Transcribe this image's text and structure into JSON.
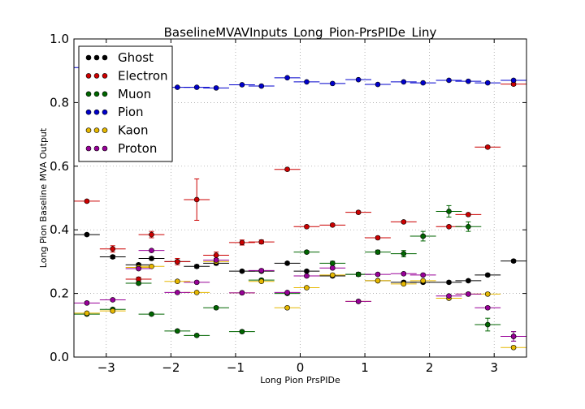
{
  "chart_data": {
    "type": "scatter",
    "title": "BaselineMVAVInputs_Long_Pion-PrsPIDe_Liny",
    "xlabel": "Long Pion PrsPIDe",
    "ylabel": "Long Pion Baseline MVA Output",
    "xlim": [
      -3.5,
      3.5
    ],
    "ylim": [
      0.0,
      1.0
    ],
    "xticks": [
      -3,
      -2,
      -1,
      0,
      1,
      2,
      3
    ],
    "xtick_labels": [
      "−3",
      "−2",
      "−1",
      "0",
      "1",
      "2",
      "3"
    ],
    "yticks": [
      0.0,
      0.2,
      0.4,
      0.6,
      0.8,
      1.0
    ],
    "ytick_labels": [
      "0.0",
      "0.2",
      "0.4",
      "0.6",
      "0.8",
      "1.0"
    ],
    "grid": true,
    "legend_position": "top-left",
    "bins": [
      -3.3,
      -2.9,
      -2.5,
      -2.3,
      -1.9,
      -1.6,
      -1.3,
      -0.9,
      -0.6,
      -0.2,
      0.1,
      0.5,
      0.9,
      1.2,
      1.6,
      1.9,
      2.3,
      2.6,
      2.9,
      3.3
    ],
    "x_half_width": 0.2,
    "series": [
      {
        "name": "Ghost",
        "color": "#000000",
        "y": [
          0.385,
          0.315,
          0.29,
          0.31,
          0.3,
          0.285,
          0.295,
          0.27,
          0.27,
          0.295,
          0.27,
          0.255,
          0.26,
          0.24,
          0.235,
          0.235,
          0.235,
          0.24,
          0.258,
          0.302
        ],
        "err": [
          0.004,
          0.005,
          0.005,
          0.005,
          0.005,
          0.005,
          0.005,
          0.004,
          0.004,
          0.004,
          0.004,
          0.004,
          0.004,
          0.004,
          0.004,
          0.004,
          0.004,
          0.004,
          0.004,
          0.004
        ]
      },
      {
        "name": "Electron",
        "color": "#cc0000",
        "y": [
          0.49,
          0.34,
          0.245,
          0.385,
          0.3,
          0.495,
          0.32,
          0.36,
          0.362,
          0.59,
          0.41,
          0.415,
          0.455,
          0.375,
          0.425,
          0.38,
          0.41,
          0.448,
          0.66,
          0.858
        ],
        "err": [
          0.004,
          0.01,
          0.006,
          0.01,
          0.01,
          0.065,
          0.01,
          0.008,
          0.006,
          0.004,
          0.004,
          0.004,
          0.004,
          0.004,
          0.004,
          0.004,
          0.004,
          0.004,
          0.004,
          0.004
        ]
      },
      {
        "name": "Muon",
        "color": "#006600",
        "y": [
          0.135,
          0.15,
          0.232,
          0.135,
          0.082,
          0.068,
          0.155,
          0.08,
          0.242,
          0.2,
          0.33,
          0.295,
          0.26,
          0.33,
          0.325,
          0.38,
          0.458,
          0.41,
          0.102,
          0.065
        ],
        "err": [
          0.004,
          0.004,
          0.004,
          0.004,
          0.004,
          0.004,
          0.004,
          0.004,
          0.004,
          0.004,
          0.004,
          0.006,
          0.006,
          0.006,
          0.01,
          0.015,
          0.018,
          0.015,
          0.02,
          0.015
        ]
      },
      {
        "name": "Pion",
        "color": "#0000cc",
        "y": [
          0.91,
          0.87,
          0.86,
          0.85,
          0.848,
          0.848,
          0.846,
          0.856,
          0.852,
          0.878,
          0.865,
          0.86,
          0.872,
          0.857,
          0.865,
          0.862,
          0.87,
          0.867,
          0.862,
          0.87
        ],
        "err": [
          0.002,
          0.002,
          0.002,
          0.002,
          0.002,
          0.002,
          0.002,
          0.002,
          0.002,
          0.002,
          0.002,
          0.002,
          0.002,
          0.002,
          0.002,
          0.002,
          0.002,
          0.002,
          0.002,
          0.002
        ]
      },
      {
        "name": "Kaon",
        "color": "#e6b800",
        "y": [
          0.138,
          0.145,
          0.282,
          0.285,
          0.238,
          0.203,
          0.3,
          0.202,
          0.238,
          0.155,
          0.218,
          0.258,
          0.175,
          0.24,
          0.23,
          0.24,
          0.185,
          0.198,
          0.198,
          0.03
        ],
        "err": [
          0.004,
          0.004,
          0.004,
          0.004,
          0.004,
          0.004,
          0.004,
          0.004,
          0.004,
          0.004,
          0.004,
          0.004,
          0.004,
          0.004,
          0.004,
          0.004,
          0.004,
          0.004,
          0.004,
          0.004
        ]
      },
      {
        "name": "Proton",
        "color": "#990099",
        "y": [
          0.17,
          0.18,
          0.278,
          0.335,
          0.203,
          0.235,
          0.305,
          0.202,
          0.272,
          0.203,
          0.255,
          0.28,
          0.175,
          0.26,
          0.262,
          0.258,
          0.192,
          0.198,
          0.155,
          0.065
        ],
        "err": [
          0.004,
          0.004,
          0.004,
          0.004,
          0.004,
          0.004,
          0.004,
          0.004,
          0.004,
          0.004,
          0.004,
          0.004,
          0.004,
          0.004,
          0.004,
          0.004,
          0.004,
          0.004,
          0.004,
          0.015
        ]
      }
    ]
  }
}
